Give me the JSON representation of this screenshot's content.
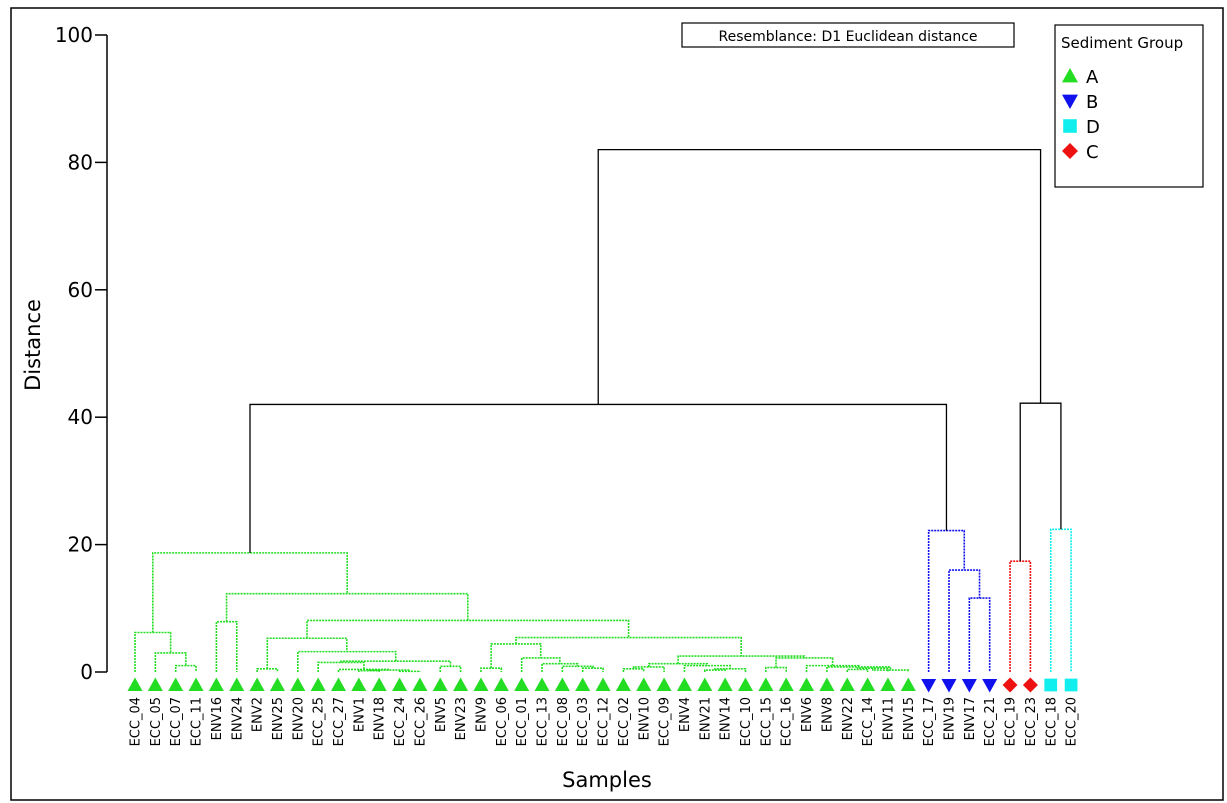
{
  "chart_data": {
    "type": "dendrogram",
    "resemblance": "Resemblance: D1 Euclidean distance",
    "xlabel": "Samples",
    "ylabel": "Distance",
    "ylim": [
      0,
      100
    ],
    "yticks": [
      "0",
      "20",
      "40",
      "60",
      "80",
      "100"
    ],
    "legend": {
      "title": "Sediment Group",
      "placement": "top-right",
      "items": [
        {
          "label": "A",
          "marker": "triangle-up",
          "color": "#22dd22"
        },
        {
          "label": "B",
          "marker": "triangle-down",
          "color": "#1111ee"
        },
        {
          "label": "D",
          "marker": "square",
          "color": "#11eeee"
        },
        {
          "label": "C",
          "marker": "diamond",
          "color": "#ee1111"
        }
      ]
    },
    "colors": {
      "A": "#22dd22",
      "B": "#1111ee",
      "D": "#11eeee",
      "C": "#ee1111",
      "root": "#000000"
    },
    "leaves": [
      {
        "label": "ECC_04",
        "group": "A"
      },
      {
        "label": "ECC_05",
        "group": "A"
      },
      {
        "label": "ECC_07",
        "group": "A"
      },
      {
        "label": "ECC_11",
        "group": "A"
      },
      {
        "label": "ENV16",
        "group": "A"
      },
      {
        "label": "ENV24",
        "group": "A"
      },
      {
        "label": "ENV2",
        "group": "A"
      },
      {
        "label": "ENV25",
        "group": "A"
      },
      {
        "label": "ENV20",
        "group": "A"
      },
      {
        "label": "ECC_25",
        "group": "A"
      },
      {
        "label": "ECC_27",
        "group": "A"
      },
      {
        "label": "ENV1",
        "group": "A"
      },
      {
        "label": "ENV18",
        "group": "A"
      },
      {
        "label": "ECC_24",
        "group": "A"
      },
      {
        "label": "ECC_26",
        "group": "A"
      },
      {
        "label": "ENV5",
        "group": "A"
      },
      {
        "label": "ENV23",
        "group": "A"
      },
      {
        "label": "ENV9",
        "group": "A"
      },
      {
        "label": "ECC_06",
        "group": "A"
      },
      {
        "label": "ECC_01",
        "group": "A"
      },
      {
        "label": "ECC_13",
        "group": "A"
      },
      {
        "label": "ECC_08",
        "group": "A"
      },
      {
        "label": "ECC_03",
        "group": "A"
      },
      {
        "label": "ECC_12",
        "group": "A"
      },
      {
        "label": "ECC_02",
        "group": "A"
      },
      {
        "label": "ENV10",
        "group": "A"
      },
      {
        "label": "ECC_09",
        "group": "A"
      },
      {
        "label": "ENV4",
        "group": "A"
      },
      {
        "label": "ENV21",
        "group": "A"
      },
      {
        "label": "ENV14",
        "group": "A"
      },
      {
        "label": "ECC_10",
        "group": "A"
      },
      {
        "label": "ECC_15",
        "group": "A"
      },
      {
        "label": "ECC_16",
        "group": "A"
      },
      {
        "label": "ENV6",
        "group": "A"
      },
      {
        "label": "ENV8",
        "group": "A"
      },
      {
        "label": "ENV22",
        "group": "A"
      },
      {
        "label": "ECC_14",
        "group": "A"
      },
      {
        "label": "ENV11",
        "group": "A"
      },
      {
        "label": "ENV15",
        "group": "A"
      },
      {
        "label": "ECC_17",
        "group": "B"
      },
      {
        "label": "ENV19",
        "group": "B"
      },
      {
        "label": "ENV17",
        "group": "B"
      },
      {
        "label": "ECC_21",
        "group": "B"
      },
      {
        "label": "ECC_19",
        "group": "C"
      },
      {
        "label": "ECC_23",
        "group": "C"
      },
      {
        "label": "ECC_18",
        "group": "D"
      },
      {
        "label": "ECC_20",
        "group": "D"
      }
    ],
    "merges": [
      {
        "id": "n1",
        "left": "ECC_07",
        "right": "ECC_11",
        "height": 1.0,
        "color": "A"
      },
      {
        "id": "n2",
        "left": "ECC_05",
        "right": "n1",
        "height": 3.0,
        "color": "A"
      },
      {
        "id": "n3",
        "left": "ECC_04",
        "right": "n2",
        "height": 6.2,
        "color": "A"
      },
      {
        "id": "n4",
        "left": "ENV16",
        "right": "ENV24",
        "height": 7.9,
        "color": "A"
      },
      {
        "id": "n5",
        "left": "ENV2",
        "right": "ENV25",
        "height": 0.5,
        "color": "A"
      },
      {
        "id": "n6",
        "left": "ENV1",
        "right": "ENV18",
        "height": 0.2,
        "color": "A"
      },
      {
        "id": "n7",
        "left": "ECC_24",
        "right": "ECC_26",
        "height": 0.1,
        "color": "A"
      },
      {
        "id": "n8",
        "left": "n6",
        "right": "n7",
        "height": 0.3,
        "color": "A"
      },
      {
        "id": "n9",
        "left": "ECC_27",
        "right": "n8",
        "height": 0.4,
        "color": "A"
      },
      {
        "id": "n10",
        "left": "ECC_25",
        "right": "n9",
        "height": 1.5,
        "color": "A"
      },
      {
        "id": "n11",
        "left": "ENV5",
        "right": "ENV23",
        "height": 0.9,
        "color": "A"
      },
      {
        "id": "n12",
        "left": "n10",
        "right": "n11",
        "height": 1.7,
        "color": "A"
      },
      {
        "id": "n13",
        "left": "ENV20",
        "right": "n12",
        "height": 3.2,
        "color": "A"
      },
      {
        "id": "n14",
        "left": "n5",
        "right": "n13",
        "height": 5.3,
        "color": "A"
      },
      {
        "id": "n15",
        "left": "ENV9",
        "right": "ECC_06",
        "height": 0.6,
        "color": "A"
      },
      {
        "id": "n16",
        "left": "ECC_03",
        "right": "ECC_12",
        "height": 0.6,
        "color": "A"
      },
      {
        "id": "n17",
        "left": "ECC_08",
        "right": "n16",
        "height": 0.9,
        "color": "A"
      },
      {
        "id": "n18",
        "left": "ECC_13",
        "right": "n17",
        "height": 1.3,
        "color": "A"
      },
      {
        "id": "n19",
        "left": "ECC_01",
        "right": "n18",
        "height": 2.2,
        "color": "A"
      },
      {
        "id": "n20",
        "left": "n15",
        "right": "n19",
        "height": 4.4,
        "color": "A"
      },
      {
        "id": "n21",
        "left": "ECC_02",
        "right": "ENV10",
        "height": 0.5,
        "color": "A"
      },
      {
        "id": "n22",
        "left": "ENV10",
        "right": "ECC_09",
        "height": 0.0,
        "color": "A",
        "skip": true
      },
      {
        "id": "n23",
        "left": "n21",
        "right": "ECC_09",
        "height": 0.8,
        "color": "A"
      },
      {
        "id": "n24",
        "left": "ENV21",
        "right": "ENV14",
        "height": 0.3,
        "color": "A"
      },
      {
        "id": "n25",
        "left": "n24",
        "right": "ECC_10",
        "height": 0.5,
        "color": "A"
      },
      {
        "id": "n26",
        "left": "ENV4",
        "right": "n25",
        "height": 1.0,
        "color": "A"
      },
      {
        "id": "n27",
        "left": "n23",
        "right": "n26",
        "height": 1.3,
        "color": "A"
      },
      {
        "id": "n28",
        "left": "ECC_15",
        "right": "ECC_16",
        "height": 0.7,
        "color": "A"
      },
      {
        "id": "n29",
        "left": "ENV22",
        "right": "ECC_14",
        "height": 0.4,
        "color": "A"
      },
      {
        "id": "n30",
        "left": "n29",
        "right": "ENV11",
        "height": 0.6,
        "color": "A"
      },
      {
        "id": "n31",
        "left": "n30",
        "right": "ENV15",
        "height": 0.3,
        "color": "A"
      },
      {
        "id": "n32",
        "left": "ENV8",
        "right": "n31",
        "height": 0.8,
        "color": "A"
      },
      {
        "id": "n33",
        "left": "ENV6",
        "right": "n32",
        "height": 1.0,
        "color": "A"
      },
      {
        "id": "n34",
        "left": "n28",
        "right": "n33",
        "height": 2.2,
        "color": "A"
      },
      {
        "id": "n35",
        "left": "n27",
        "right": "n34",
        "height": 2.5,
        "color": "A"
      },
      {
        "id": "n36",
        "left": "n20",
        "right": "n35",
        "height": 5.4,
        "color": "A"
      },
      {
        "id": "n37",
        "left": "n14",
        "right": "n36",
        "height": 8.1,
        "color": "A"
      },
      {
        "id": "n38",
        "left": "n4",
        "right": "n37",
        "height": 12.3,
        "color": "A"
      },
      {
        "id": "n39",
        "left": "n3",
        "right": "n38",
        "height": 18.7,
        "color": "A"
      },
      {
        "id": "n40",
        "left": "ENV17",
        "right": "ECC_21",
        "height": 11.6,
        "color": "B"
      },
      {
        "id": "n41",
        "left": "ENV19",
        "right": "n40",
        "height": 16.0,
        "color": "B"
      },
      {
        "id": "n42",
        "left": "ECC_17",
        "right": "n41",
        "height": 22.2,
        "color": "B"
      },
      {
        "id": "n43",
        "left": "n39",
        "right": "n42",
        "height": 42.0,
        "color": "root"
      },
      {
        "id": "n44",
        "left": "ECC_19",
        "right": "ECC_23",
        "height": 17.4,
        "color": "C"
      },
      {
        "id": "n45",
        "left": "ECC_18",
        "right": "ECC_20",
        "height": 22.4,
        "color": "D"
      },
      {
        "id": "n46",
        "left": "n44",
        "right": "n45",
        "height": 42.2,
        "color": "root"
      },
      {
        "id": "n47",
        "left": "n43",
        "right": "n46",
        "height": 82.0,
        "color": "root"
      }
    ]
  }
}
